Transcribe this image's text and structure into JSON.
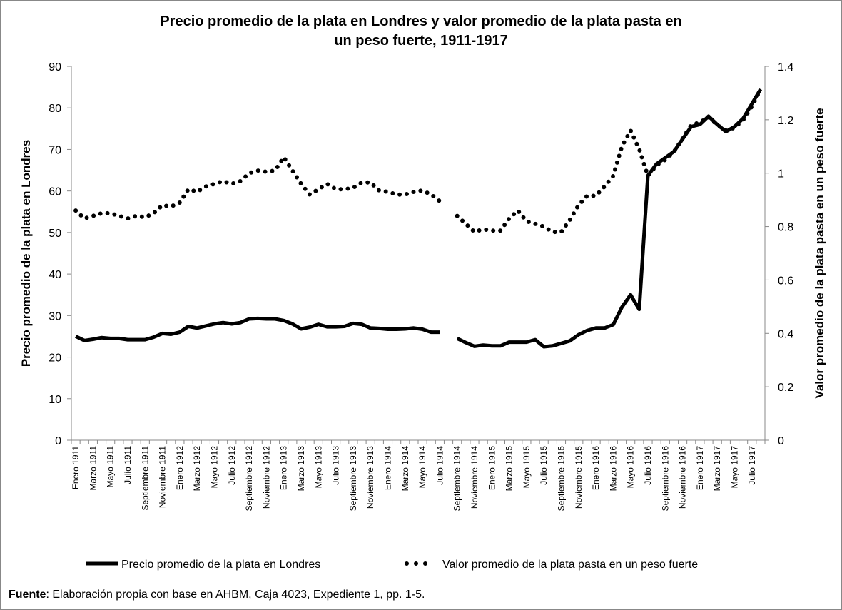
{
  "chart_data": {
    "type": "line",
    "title": "Precio promedio de la plata en Londres y valor promedio de la plata pasta en",
    "title_line2": "un peso fuerte, 1911-1917",
    "ylabel": "Precio promedio de la plata en Londres",
    "y2label": "Valor promedio de la plata pasta  en un peso fuerte",
    "categories": [
      "Enero 1911",
      null,
      "Marzo 1911",
      null,
      "Mayo 1911",
      null,
      "Julio 1911",
      null,
      "Septiembre 1911",
      null,
      "Noviembre 1911",
      null,
      "Enero 1912",
      null,
      "Marzo 1912",
      null,
      "Mayo 1912",
      null,
      "Julio 1912",
      null,
      "Septiembre 1912",
      null,
      "Noviembre 1912",
      null,
      "Enero 1913",
      null,
      "Marzo 1913",
      null,
      "Mayo 1913",
      null,
      "Julio 1913",
      null,
      "Septiembre 1913",
      null,
      "Noviembre 1913",
      null,
      "Enero 1914",
      null,
      "Marzo 1914",
      null,
      "Mayo 1914",
      null,
      "Julio 1914",
      null,
      "Septiembre 1914",
      null,
      "Noviembre 1914",
      null,
      "Enero 1915",
      null,
      "Marzo 1915",
      null,
      "Mayo 1915",
      null,
      "Julio 1915",
      null,
      "Septiembre 1915",
      null,
      "Noviembre 1915",
      null,
      "Enero 1916",
      null,
      "Marzo 1916",
      null,
      "Mayo 1916",
      null,
      "Julio 1916",
      null,
      "Septiembre 1916",
      null,
      "Noviembre 1916",
      null,
      "Enero 1917",
      null,
      "Marzo 1917",
      null,
      "Mayo 1917",
      null,
      "Julio 1917",
      null
    ],
    "series": [
      {
        "name": "Precio promedio de la plata en Londres",
        "color": "#000000",
        "style": "solid",
        "values": [
          25,
          24,
          24.3,
          24.7,
          24.5,
          24.5,
          24.2,
          24.2,
          24.2,
          24.8,
          25.7,
          25.5,
          26,
          27.4,
          27,
          27.5,
          28,
          28.3,
          28,
          28.3,
          29.2,
          29.3,
          29.2,
          29.2,
          28.8,
          28,
          26.8,
          27.2,
          27.9,
          27.3,
          27.3,
          27.4,
          28.1,
          27.9,
          27,
          26.9,
          26.7,
          26.7,
          26.8,
          27,
          26.7,
          26,
          26,
          null,
          24.5,
          23.5,
          22.6,
          22.9,
          22.7,
          22.7,
          23.6,
          23.6,
          23.6,
          24.2,
          22.5,
          22.7,
          23.3,
          23.9,
          25.4,
          26.4,
          27,
          27,
          27.8,
          32,
          35,
          31.5,
          63.7,
          66.5,
          68,
          69.5,
          72.5,
          75.5,
          76,
          78,
          76,
          74.3,
          75.5,
          77.5,
          81,
          84.5
        ]
      },
      {
        "name": "Valor promedio de la plata pasta en un peso fuerte",
        "color": "#000000",
        "style": "dotted",
        "axis": "y2",
        "values": [
          0.86,
          0.83,
          0.84,
          0.85,
          0.85,
          0.84,
          0.83,
          0.84,
          0.835,
          0.85,
          0.88,
          0.875,
          0.89,
          0.94,
          0.93,
          0.95,
          0.96,
          0.97,
          0.96,
          0.97,
          1.0,
          1.01,
          1.005,
          1.01,
          1.06,
          1.01,
          0.96,
          0.92,
          0.94,
          0.96,
          0.94,
          0.94,
          0.945,
          0.965,
          0.965,
          0.935,
          0.93,
          0.92,
          0.92,
          0.93,
          0.935,
          0.92,
          0.895,
          null,
          0.84,
          0.81,
          0.78,
          0.79,
          0.785,
          0.785,
          0.83,
          0.86,
          0.82,
          0.81,
          0.8,
          0.78,
          0.78,
          0.825,
          0.88,
          0.915,
          0.915,
          0.95,
          0.99,
          1.1,
          1.16,
          1.09,
          0.99,
          1.03,
          1.05,
          1.08,
          1.13,
          1.18,
          1.19,
          1.21,
          1.18,
          1.16,
          1.17,
          1.2,
          1.25,
          1.315
        ]
      }
    ],
    "ylim": [
      0,
      90
    ],
    "yticks": [
      0,
      10,
      20,
      30,
      40,
      50,
      60,
      70,
      80,
      90
    ],
    "y2lim": [
      0,
      1.4
    ],
    "y2ticks": [
      0,
      0.2,
      0.4,
      0.6,
      0.8,
      1,
      1.2,
      1.4
    ],
    "legend": "bottom"
  },
  "source": {
    "label": "Fuente",
    "text": ": Elaboración propia con base en AHBM, Caja 4023, Expediente 1, pp. 1-5."
  }
}
